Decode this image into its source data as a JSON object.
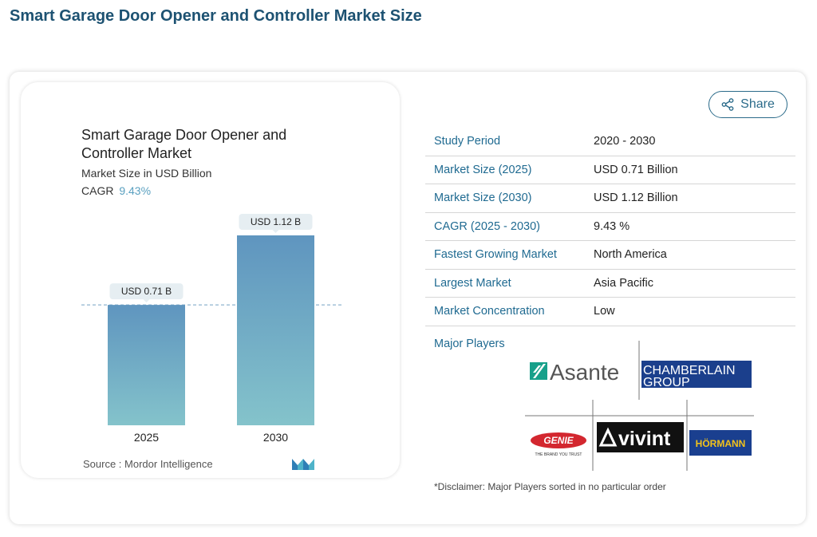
{
  "page": {
    "title": "Smart Garage Door Opener and Controller Market Size"
  },
  "chart_data": {
    "type": "bar",
    "title": "Smart Garage Door Opener and Controller Market",
    "subtitle": "Market Size in USD Billion",
    "cagr_label": "CAGR",
    "cagr_value": "9.43%",
    "categories": [
      "2025",
      "2030"
    ],
    "values": [
      0.71,
      1.12
    ],
    "data_labels": [
      "USD 0.71 B",
      "USD 1.12 B"
    ],
    "colors": {
      "bar_top": "#5f95bf",
      "bar_bottom": "#84c3cb",
      "label_bg": "#e6eef2",
      "dashed_line": "#8fb4cf"
    },
    "source": "Source : Mordor Intelligence"
  },
  "share": {
    "label": "Share",
    "icon": "share-icon"
  },
  "info_rows": [
    {
      "label": "Study Period",
      "value": "2020 - 2030"
    },
    {
      "label": "Market Size (2025)",
      "value": "USD 0.71 Billion"
    },
    {
      "label": "Market Size (2030)",
      "value": "USD 1.12 Billion"
    },
    {
      "label": "CAGR (2025 - 2030)",
      "value": "9.43 %"
    },
    {
      "label": "Fastest Growing Market",
      "value": "North America"
    },
    {
      "label": "Largest Market",
      "value": "Asia Pacific"
    },
    {
      "label": "Market Concentration",
      "value": "Low"
    }
  ],
  "players": {
    "label": "Major Players",
    "logos": {
      "asante": "Asante",
      "chamberlain_line1": "CHAMBERLAIN",
      "chamberlain_line2": "GROUP",
      "genie": "GENIE",
      "genie_tagline": "THE BRAND YOU TRUST",
      "vivint": "vivint",
      "hormann": "HÖRMANN"
    }
  },
  "disclaimer": "*Disclaimer: Major Players sorted in no particular order"
}
